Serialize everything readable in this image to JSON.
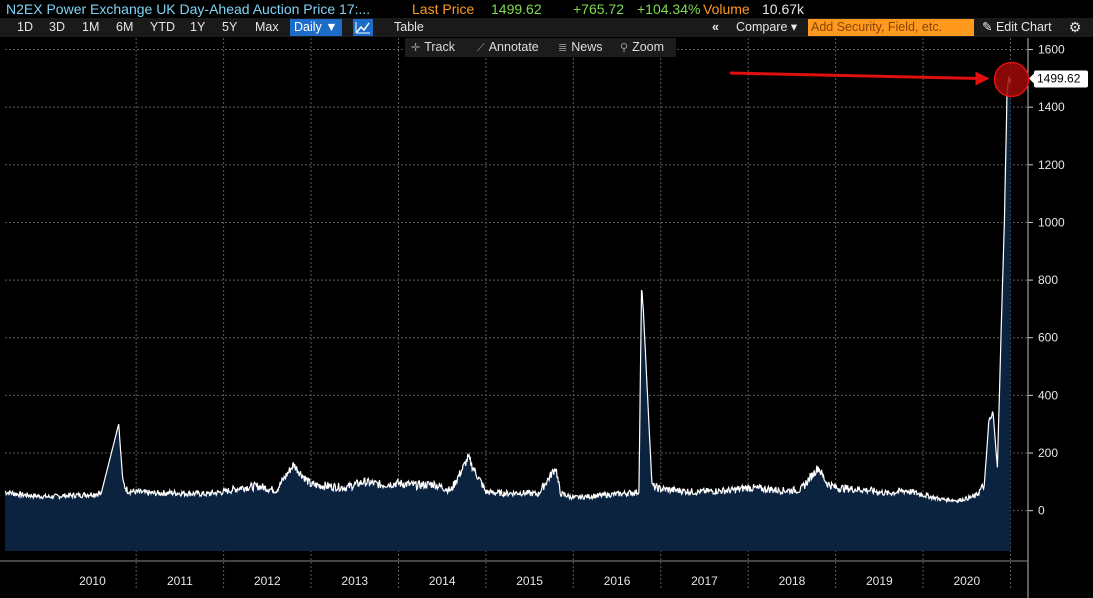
{
  "header": {
    "title": "N2EX Power Exchange UK Day-Ahead Auction Price 17:...",
    "last_price_label": "Last Price",
    "last_price": "1499.62",
    "change": "+765.72",
    "change_pct": "+104.34%",
    "volume_label": "Volume",
    "volume": "10.67k"
  },
  "toolbar": {
    "ranges": [
      "1D",
      "3D",
      "1M",
      "6M",
      "YTD",
      "1Y",
      "5Y",
      "Max"
    ],
    "frequency": "Daily ▼",
    "chart_icon": "line-chart-icon",
    "table_label": "Table",
    "collapse_icon": "«",
    "compare_label": "Compare ▾",
    "security_placeholder": "Add Security, Field, etc.",
    "edit_chart_label": "Edit Chart",
    "settings_icon": "gear-icon"
  },
  "subtoolbar": {
    "track": "Track",
    "annotate": "Annotate",
    "news": "News",
    "zoom": "Zoom"
  },
  "colors": {
    "background": "#000000",
    "line": "#ffffff",
    "area_fill": "#0c2340",
    "grid": "#5a5a5a",
    "accent_orange": "#ff9a1f",
    "accent_green": "#7ddc4f",
    "title_blue": "#7fd3f7",
    "annotation_red": "#e01010"
  },
  "chart_data": {
    "type": "area",
    "title": "",
    "xlabel": "",
    "ylabel": "",
    "x_tick_labels": [
      "2010",
      "2011",
      "2012",
      "2013",
      "2014",
      "2015",
      "2016",
      "2017",
      "2018",
      "2019",
      "2020"
    ],
    "y_ticks": [
      0,
      200,
      400,
      600,
      800,
      1000,
      1200,
      1400,
      1600
    ],
    "ylim": [
      -140,
      1640
    ],
    "xlim": [
      2009.5,
      2021.2
    ],
    "last_value_label": "1499.62",
    "grid": true,
    "y_axis_side": "right",
    "annotation": "red arrow pointing to a red circle marking the last price spike",
    "series": [
      {
        "x": [
          2009.5,
          2009.7,
          2009.9,
          2010.0,
          2010.2,
          2010.4,
          2010.6,
          2010.8,
          2010.85,
          2010.9,
          2011.0,
          2011.2,
          2011.4,
          2011.6,
          2011.8,
          2012.0,
          2012.2,
          2012.4,
          2012.6,
          2012.8,
          2012.85,
          2013.0,
          2013.2,
          2013.4,
          2013.6,
          2013.8,
          2014.0,
          2014.2,
          2014.4,
          2014.6,
          2014.8,
          2014.85,
          2014.95,
          2015.0,
          2015.2,
          2015.4,
          2015.6,
          2015.8,
          2015.85,
          2016.0,
          2016.2,
          2016.4,
          2016.6,
          2016.75,
          2016.78,
          2016.8,
          2016.85,
          2016.9,
          2017.0,
          2017.2,
          2017.4,
          2017.6,
          2017.8,
          2018.0,
          2018.2,
          2018.4,
          2018.6,
          2018.8,
          2018.9,
          2019.0,
          2019.2,
          2019.4,
          2019.6,
          2019.8,
          2020.0,
          2020.2,
          2020.4,
          2020.6,
          2020.7,
          2020.75,
          2020.8,
          2020.85,
          2020.9,
          2020.93,
          2020.96,
          2020.98,
          2021.0
        ],
        "y": [
          65,
          55,
          50,
          48,
          52,
          55,
          60,
          300,
          95,
          70,
          65,
          60,
          62,
          60,
          58,
          65,
          80,
          85,
          70,
          160,
          140,
          90,
          85,
          80,
          100,
          90,
          95,
          88,
          92,
          70,
          185,
          150,
          95,
          65,
          60,
          62,
          58,
          150,
          60,
          45,
          50,
          55,
          60,
          65,
          780,
          700,
          390,
          85,
          75,
          70,
          65,
          68,
          70,
          80,
          75,
          70,
          72,
          150,
          95,
          80,
          75,
          70,
          60,
          70,
          55,
          40,
          35,
          50,
          90,
          300,
          340,
          150,
          700,
          1000,
          1450,
          1499.62,
          1499.62
        ]
      }
    ]
  }
}
